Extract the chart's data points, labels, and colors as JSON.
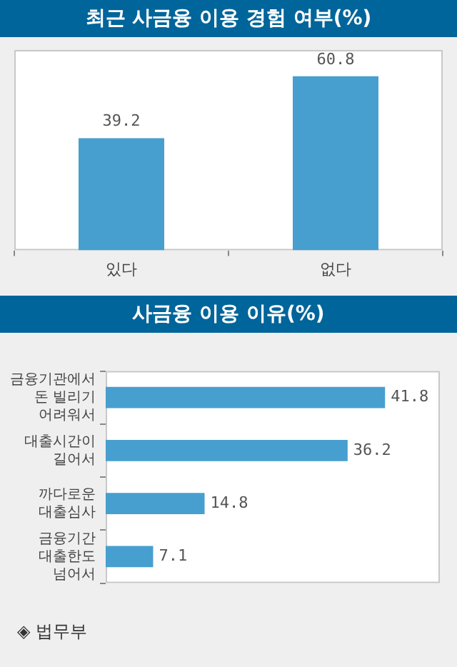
{
  "chart_data": [
    {
      "type": "bar",
      "title": "최근 사금융 이용 경험 여부(%)",
      "categories": [
        "있다",
        "없다"
      ],
      "values": [
        39.2,
        60.8
      ],
      "color": "#479fcf",
      "data_labels": true
    },
    {
      "type": "bar",
      "title": "사금융 이용 이유(%)",
      "orientation": "horizontal",
      "categories": [
        "금융기관에서\n돈 빌리기\n어려워서",
        "대출시간이\n길어서",
        "까다로운\n대출심사",
        "금융기간\n대출한도\n넘어서"
      ],
      "values": [
        41.8,
        36.2,
        14.8,
        7.1
      ],
      "color": "#479fcf",
      "data_labels": true,
      "annotations": [
        "◈ 법무부"
      ]
    }
  ]
}
